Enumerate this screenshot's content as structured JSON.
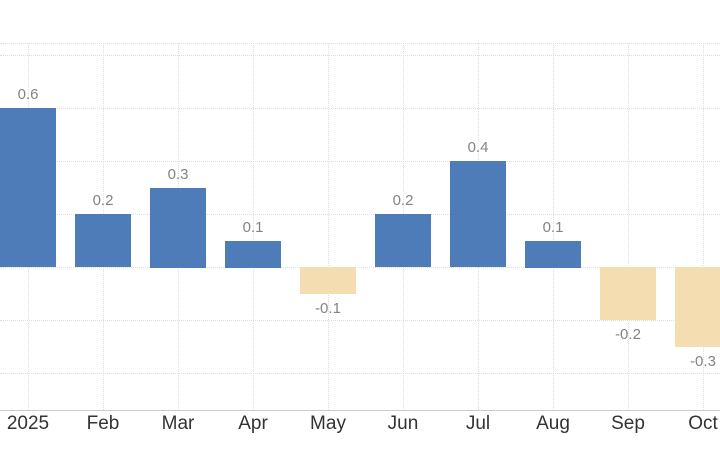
{
  "chart_data": {
    "type": "bar",
    "categories": [
      "2025",
      "Feb",
      "Mar",
      "Apr",
      "May",
      "Jun",
      "Jul",
      "Aug",
      "Sep",
      "Oct"
    ],
    "values": [
      0.6,
      0.2,
      0.3,
      0.1,
      -0.1,
      0.2,
      0.4,
      0.1,
      -0.2,
      -0.3
    ],
    "value_labels": [
      "0.6",
      "0.2",
      "0.3",
      "0.1",
      "-0.1",
      "0.2",
      "0.4",
      "0.1",
      "-0.2",
      "-0.3"
    ],
    "title": "",
    "xlabel": "",
    "ylabel": "",
    "ylim": [
      -0.55,
      0.85
    ],
    "gridline_values": [
      0.8,
      0.6,
      0.4,
      0.2,
      0,
      -0.2,
      -0.4
    ],
    "grid": true,
    "legend": false,
    "colors": {
      "positive_bar": "#4e7cb8",
      "negative_bar": "#f3ddb1",
      "gridline": "#dedede",
      "plot_border": "#dedede",
      "axis_line": "#cccccc",
      "axis_label": "#333333",
      "value_label": "#848484",
      "background": "#ffffff"
    }
  }
}
